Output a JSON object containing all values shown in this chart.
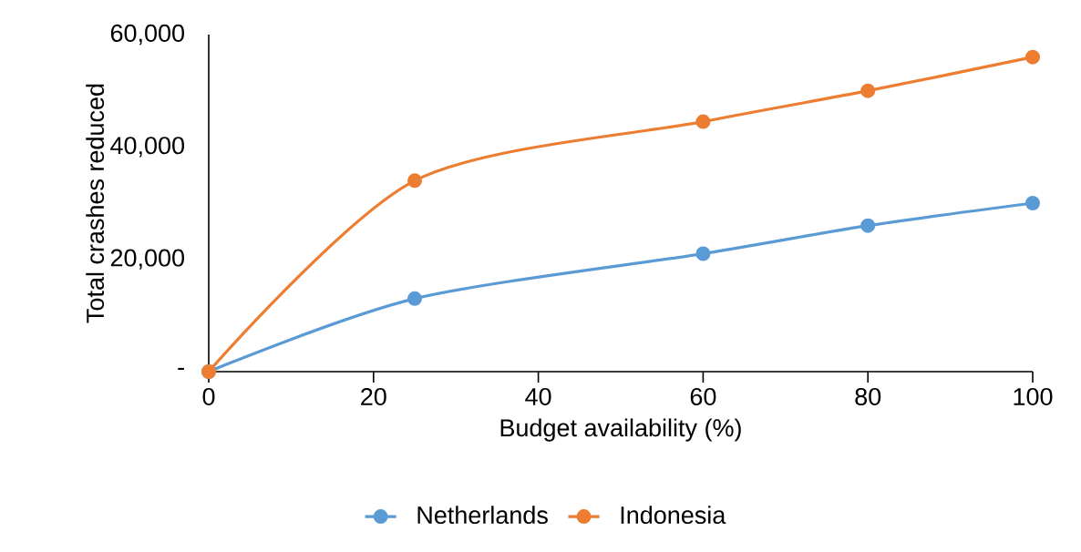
{
  "chart_data": {
    "type": "line",
    "xlabel": "Budget availability (%)",
    "ylabel": "Total crashes reduced",
    "x": [
      0,
      25,
      60,
      80,
      100
    ],
    "series": [
      {
        "name": "Netherlands",
        "color": "#5b9bd5",
        "values": [
          0,
          13000,
          21000,
          26000,
          30000
        ]
      },
      {
        "name": "Indonesia",
        "color": "#ed7d31",
        "values": [
          0,
          34000,
          44500,
          50000,
          56000
        ]
      }
    ],
    "xlim": [
      0,
      100
    ],
    "xticks": [
      0,
      20,
      40,
      60,
      80,
      100
    ],
    "ylim": [
      0,
      60000
    ],
    "yticks": [
      {
        "value": 0,
        "label": "-"
      },
      {
        "value": 20000,
        "label": "20,000"
      },
      {
        "value": 40000,
        "label": "40,000"
      },
      {
        "value": 60000,
        "label": "60,000"
      }
    ],
    "legend": "bottom",
    "marker": "circle",
    "line_style": "solid",
    "grid": false
  }
}
